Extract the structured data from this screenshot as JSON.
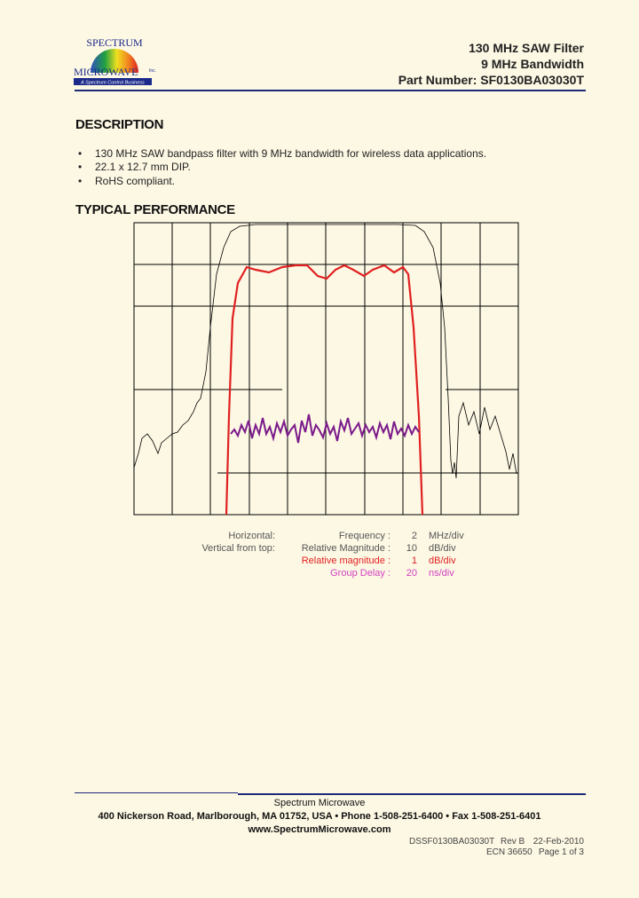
{
  "header": {
    "logo": {
      "name": "SPECTRUM",
      "brand": "MICROWAVE",
      "tagline": "A Spectrum Control Business",
      "suffix": "Inc."
    },
    "title_lines": [
      "130 MHz SAW Filter",
      "9 MHz Bandwidth",
      "Part Number: SF0130BA03030T"
    ]
  },
  "description": {
    "heading": "DESCRIPTION",
    "bullets": [
      "130 MHz SAW bandpass filter with 9 MHz bandwidth for wireless data applications.",
      "22.1 x 12.7 mm DIP.",
      "RoHS compliant."
    ]
  },
  "performance": {
    "heading": "TYPICAL PERFORMANCE",
    "scales": [
      {
        "side": "Horizontal:",
        "name": "Frequency :",
        "value": 2,
        "unit": "MHz/div",
        "color": "#555555"
      },
      {
        "side": "Vertical from top:",
        "name": "Relative Magnitude :",
        "value": 10,
        "unit": "dB/div",
        "color": "#555555"
      },
      {
        "name": "Relative magnitude :",
        "value": 1,
        "unit": "dB/div",
        "color": "#e02020"
      },
      {
        "name": "Group Delay :",
        "value": 20,
        "unit": "ns/div",
        "color": "#d040c0"
      }
    ]
  },
  "footer": {
    "company": "Spectrum Microwave",
    "address": "400 Nickerson Road, Marlborough, MA 01752, USA  •  Phone 1-508-251-6400  •  Fax 1-508-251-6401",
    "website": "www.SpectrumMicrowave.com",
    "doc": "DSSF0130BA03030T",
    "rev": "Rev B",
    "date": "22-Feb-2010",
    "ecn": "ECN 36650",
    "page": "Page 1 of 3"
  }
}
